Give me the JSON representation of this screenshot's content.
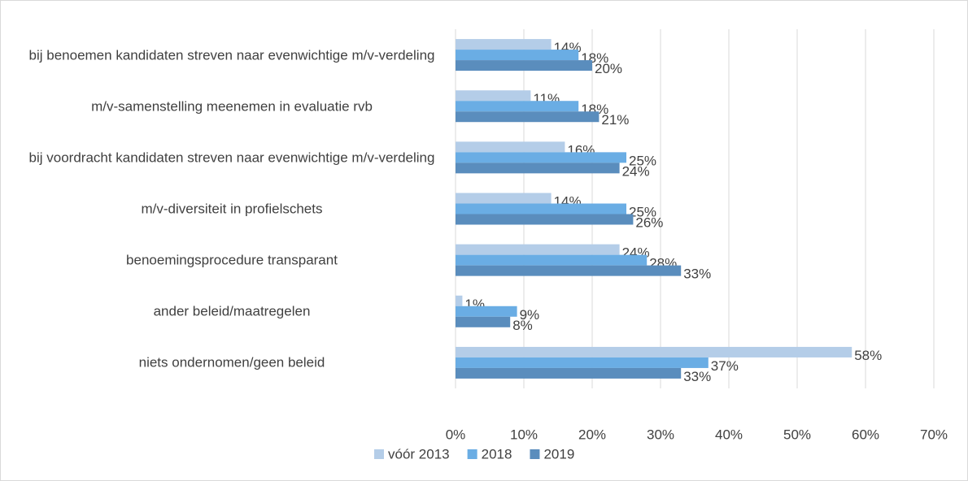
{
  "chart_data": {
    "type": "bar",
    "orientation": "horizontal",
    "categories": [
      "bij benoemen kandidaten streven naar evenwichtige m/v-verdeling",
      "m/v-samenstelling meenemen in evaluatie rvb",
      "bij voordracht kandidaten streven naar evenwichtige m/v-verdeling",
      "m/v-diversiteit in profielschets",
      "benoemingsprocedure transparant",
      "ander beleid/maatregelen",
      "niets ondernomen/geen beleid"
    ],
    "series": [
      {
        "name": "vóór 2013",
        "color": "#b4cde8",
        "values": [
          14,
          11,
          16,
          14,
          24,
          1,
          58
        ],
        "value_labels": [
          "14%",
          "11%",
          "16%",
          "14%",
          "24%",
          "1%",
          "58%"
        ]
      },
      {
        "name": "2018",
        "color": "#6aade4",
        "values": [
          18,
          18,
          25,
          25,
          28,
          9,
          37
        ],
        "value_labels": [
          "18%",
          "18%",
          "25%",
          "25%",
          "28%",
          "9%",
          "37%"
        ]
      },
      {
        "name": "2019",
        "color": "#5a8dbd",
        "values": [
          20,
          21,
          24,
          26,
          33,
          8,
          33
        ],
        "value_labels": [
          "20%",
          "21%",
          "24%",
          "26%",
          "33%",
          "8%",
          "33%"
        ]
      }
    ],
    "xlim": [
      0,
      70
    ],
    "xticks": [
      {
        "value": 0,
        "label": "0%"
      },
      {
        "value": 10,
        "label": "10%"
      },
      {
        "value": 20,
        "label": "20%"
      },
      {
        "value": 30,
        "label": "30%"
      },
      {
        "value": 40,
        "label": "40%"
      },
      {
        "value": 50,
        "label": "50%"
      },
      {
        "value": 60,
        "label": "60%"
      },
      {
        "value": 70,
        "label": "70%"
      }
    ],
    "grid": true,
    "legend": "bottom"
  }
}
